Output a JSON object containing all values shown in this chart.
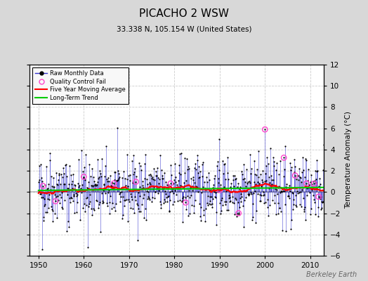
{
  "title": "PICACHO 2 WSW",
  "subtitle": "33.338 N, 105.154 W (United States)",
  "ylabel": "Temperature Anomaly (°C)",
  "credit": "Berkeley Earth",
  "start_year": 1950,
  "end_year": 2012,
  "ylim": [
    -6,
    12
  ],
  "yticks": [
    -6,
    -4,
    -2,
    0,
    2,
    4,
    6,
    8,
    10,
    12
  ],
  "xlim": [
    1948,
    2013
  ],
  "xticks": [
    1950,
    1960,
    1970,
    1980,
    1990,
    2000,
    2010
  ],
  "background_color": "#d8d8d8",
  "plot_bg_color": "#ffffff",
  "raw_line_color": "#3333cc",
  "raw_dot_color": "#000000",
  "qc_fail_color": "#ff44cc",
  "moving_avg_color": "#ff0000",
  "trend_color": "#00cc00",
  "seed": 42,
  "n_months": 756,
  "qc_fail_indices": [
    12,
    45,
    120,
    200,
    258,
    350,
    390,
    480,
    530,
    600,
    650,
    680,
    710,
    730,
    742
  ]
}
